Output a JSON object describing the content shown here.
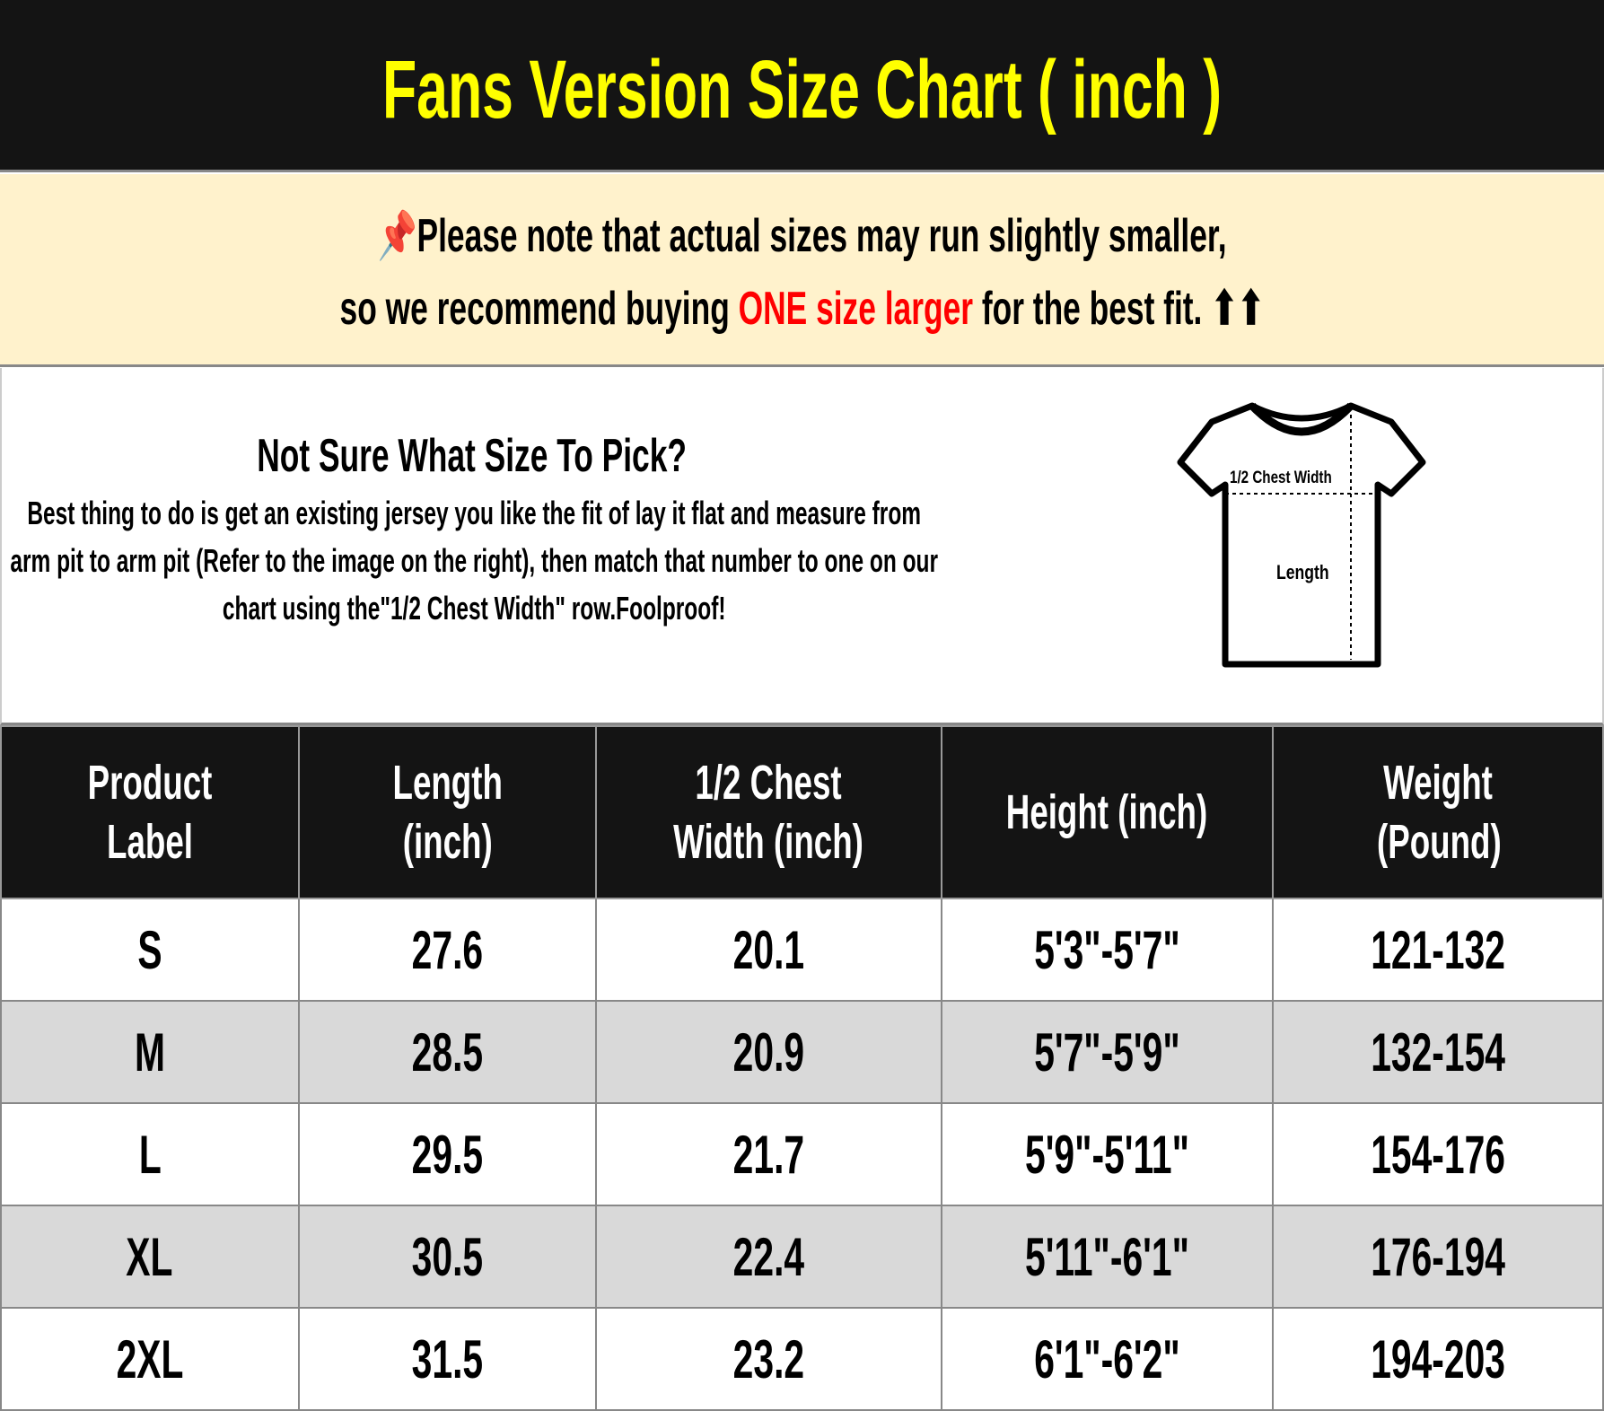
{
  "title": "Fans Version Size Chart ( inch )",
  "note": {
    "icon": "pushpin-icon",
    "line1": "Please note that actual sizes may run slightly smaller,",
    "line2_before": "so we recommend buying ",
    "line2_highlight": "ONE size larger",
    "line2_after": " for the best fit.",
    "arrows": "⬆⬆",
    "highlight_color": "#ff0000"
  },
  "info": {
    "heading": "Not Sure What Size To Pick?",
    "paragraph": "Best thing to do is get an existing jersey you like the fit of lay it flat and measure from arm pit to arm pit (Refer to the image on the right), then match that number to one on our chart using the\"1/2 Chest Width\" row.Foolproof!",
    "diagram": {
      "chest_label": "1/2 Chest Width",
      "length_label": "Length"
    }
  },
  "table": {
    "headers": [
      "Product Label",
      "Length (inch)",
      "1/2 Chest Width (inch)",
      "Height (inch)",
      "Weight (Pound)"
    ],
    "rows": [
      [
        "S",
        "27.6",
        "20.1",
        "5'3\"-5'7\"",
        "121-132"
      ],
      [
        "M",
        "28.5",
        "20.9",
        "5'7\"-5'9\"",
        "132-154"
      ],
      [
        "L",
        "29.5",
        "21.7",
        "5'9\"-5'11\"",
        "154-176"
      ],
      [
        "XL",
        "30.5",
        "22.4",
        "5'11\"-6'1\"",
        "176-194"
      ],
      [
        "2XL",
        "31.5",
        "23.2",
        "6'1\"-6'2\"",
        "194-203"
      ]
    ]
  },
  "colors": {
    "title_bg": "#141414",
    "title_text": "#ffff00",
    "note_bg": "#fff2cc",
    "row_alt": "#d9d9d9"
  }
}
